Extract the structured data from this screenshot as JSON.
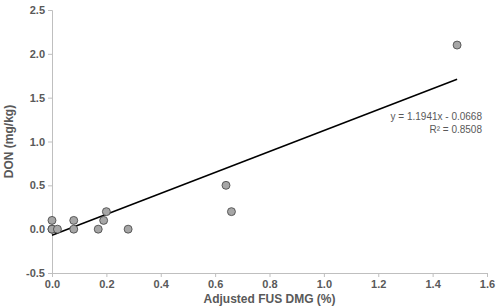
{
  "chart_data": {
    "type": "scatter",
    "x_label": "Adjusted FUS DMG (%)",
    "y_label": "DON (mg/kg)",
    "x": [
      0.0,
      0.0,
      0.0,
      0.02,
      0.08,
      0.08,
      0.17,
      0.19,
      0.2,
      0.28,
      0.64,
      0.66,
      1.49
    ],
    "y": [
      0.1,
      0.0,
      0.0,
      0.0,
      0.1,
      0.0,
      0.0,
      0.1,
      0.2,
      0.0,
      0.5,
      0.2,
      2.1
    ],
    "color": "#a6a6a6",
    "marker": "circle",
    "trendline": {
      "x": [
        0.0,
        1.49
      ],
      "values": [
        -0.07,
        1.71
      ],
      "color": "#000000",
      "line_style": "solid"
    },
    "annotations": [
      "y = 1.1941x - 0.0668",
      "R² = 0.8508"
    ],
    "xlim": [
      0,
      1.6
    ],
    "xticks": [
      {
        "value": 0,
        "label": "0.0"
      },
      0.2,
      0.4,
      0.6,
      0.8,
      {
        "value": 1,
        "label": "1.0"
      },
      1.2,
      1.4,
      1.6
    ],
    "ylim": [
      -0.5,
      2.5
    ],
    "yticks": [
      -0.5,
      {
        "value": 0,
        "label": "0.0"
      },
      0.5,
      {
        "value": 1,
        "label": "1.0"
      },
      1.5,
      {
        "value": 2,
        "label": "2.0"
      },
      2.5
    ],
    "grid": false
  }
}
